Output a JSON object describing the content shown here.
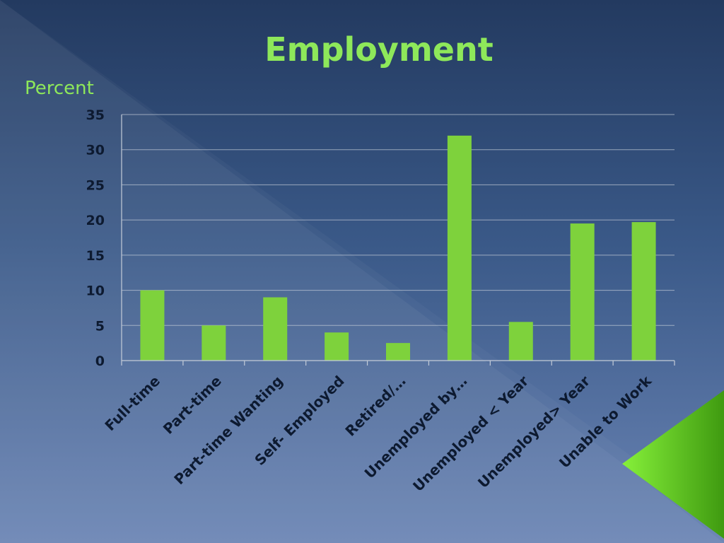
{
  "slide": {
    "title": "Employment",
    "accent_color": "#7ed23c",
    "background": [
      "#233a60",
      "#6a84b4"
    ]
  },
  "chart_data": {
    "type": "bar",
    "title": "",
    "ylabel": "Percent",
    "xlabel": "",
    "ylim": [
      0,
      35
    ],
    "yticks": [
      0,
      5,
      10,
      15,
      20,
      25,
      30,
      35
    ],
    "grid": true,
    "legend": "none",
    "categories": [
      "Full-time",
      "Part-time",
      "Part-time Wanting",
      "Self- Employed",
      "Retired/…",
      "Unemployed by…",
      "Unemployed < Year",
      "Unemployed> Year",
      "Unable to Work"
    ],
    "values": [
      10,
      5,
      9,
      4,
      2.5,
      32,
      5.5,
      19.5,
      19.7
    ],
    "bar_color": "#7ed23c"
  }
}
